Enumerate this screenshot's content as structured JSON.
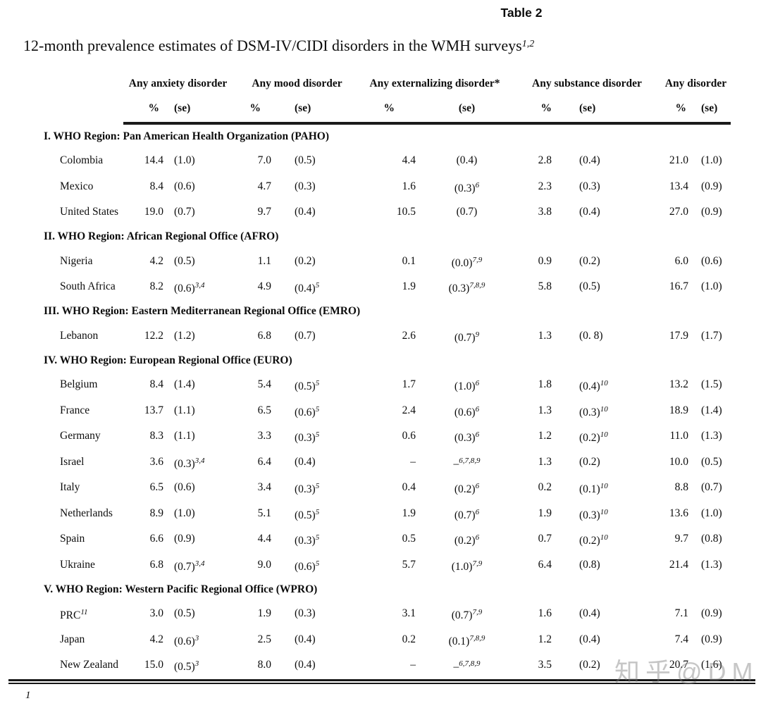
{
  "page": {
    "table_label": "Table 2",
    "caption": "12-month prevalence estimates of DSM-IV/CIDI disorders in the WMH surveys",
    "caption_sup": "1,2",
    "footnote_marker": "1",
    "watermark": "知乎@DM",
    "text_color": "#0d0d0d",
    "background_color": "#ffffff"
  },
  "table": {
    "column_groups": [
      {
        "label": "Any anxiety disorder"
      },
      {
        "label": "Any mood disorder"
      },
      {
        "label": "Any externalizing disorder*"
      },
      {
        "label": "Any substance disorder"
      },
      {
        "label": "Any disorder"
      }
    ],
    "subheaders": {
      "pct": "%",
      "se": "(se)"
    },
    "sections": [
      {
        "header": "I. WHO Region: Pan American Health Organization (PAHO)",
        "rows": [
          {
            "country": "Colombia",
            "cells": [
              "14.4",
              "(1.0)",
              "7.0",
              "(0.5)",
              "4.4",
              "(0.4)",
              "2.8",
              "(0.4)",
              "21.0",
              "(1.0)"
            ]
          },
          {
            "country": "Mexico",
            "cells": [
              "8.4",
              "(0.6)",
              "4.7",
              "(0.3)",
              "1.6",
              "(0.3)^6",
              "2.3",
              "(0.3)",
              "13.4",
              "(0.9)"
            ]
          },
          {
            "country": "United States",
            "cells": [
              "19.0",
              "(0.7)",
              "9.7",
              "(0.4)",
              "10.5",
              "(0.7)",
              "3.8",
              "(0.4)",
              "27.0",
              "(0.9)"
            ]
          }
        ]
      },
      {
        "header": "II. WHO Region: African Regional Office (AFRO)",
        "rows": [
          {
            "country": "Nigeria",
            "cells": [
              "4.2",
              "(0.5)",
              "1.1",
              "(0.2)",
              "0.1",
              "(0.0)^7,9",
              "0.9",
              "(0.2)",
              "6.0",
              "(0.6)"
            ]
          },
          {
            "country": "South Africa",
            "cells": [
              "8.2",
              "(0.6)^3,4",
              "4.9",
              "(0.4)^5",
              "1.9",
              "(0.3)^7,8,9",
              "5.8",
              "(0.5)",
              "16.7",
              "(1.0)"
            ]
          }
        ]
      },
      {
        "header": "III. WHO Region: Eastern Mediterranean Regional Office (EMRO)",
        "rows": [
          {
            "country": "Lebanon",
            "cells": [
              "12.2",
              "(1.2)",
              "6.8",
              "(0.7)",
              "2.6",
              "(0.7)^9",
              "1.3",
              "(0. 8)",
              "17.9",
              "(1.7)"
            ]
          }
        ]
      },
      {
        "header": "IV. WHO Region: European Regional Office (EURO)",
        "rows": [
          {
            "country": "Belgium",
            "cells": [
              "8.4",
              "(1.4)",
              "5.4",
              "(0.5)^5",
              "1.7",
              "(1.0)^6",
              "1.8",
              "(0.4)^10",
              "13.2",
              "(1.5)"
            ]
          },
          {
            "country": "France",
            "cells": [
              "13.7",
              "(1.1)",
              "6.5",
              "(0.6)^5",
              "2.4",
              "(0.6)^6",
              "1.3",
              "(0.3)^10",
              "18.9",
              "(1.4)"
            ]
          },
          {
            "country": "Germany",
            "cells": [
              "8.3",
              "(1.1)",
              "3.3",
              "(0.3)^5",
              "0.6",
              "(0.3)^6",
              "1.2",
              "(0.2)^10",
              "11.0",
              "(1.3)"
            ]
          },
          {
            "country": "Israel",
            "cells": [
              "3.6",
              "(0.3)^3,4",
              "6.4",
              "(0.4)",
              "–",
              "–^6,7,8,9",
              "1.3",
              "(0.2)",
              "10.0",
              "(0.5)"
            ]
          },
          {
            "country": "Italy",
            "cells": [
              "6.5",
              "(0.6)",
              "3.4",
              "(0.3)^5",
              "0.4",
              "(0.2)^6",
              "0.2",
              "(0.1)^10",
              "8.8",
              "(0.7)"
            ]
          },
          {
            "country": "Netherlands",
            "cells": [
              "8.9",
              "(1.0)",
              "5.1",
              "(0.5)^5",
              "1.9",
              "(0.7)^6",
              "1.9",
              "(0.3)^10",
              "13.6",
              "(1.0)"
            ]
          },
          {
            "country": "Spain",
            "cells": [
              "6.6",
              "(0.9)",
              "4.4",
              "(0.3)^5",
              "0.5",
              "(0.2)^6",
              "0.7",
              "(0.2)^10",
              "9.7",
              "(0.8)"
            ]
          },
          {
            "country": "Ukraine",
            "cells": [
              "6.8",
              "(0.7)^3,4",
              "9.0",
              "(0.6)^5",
              "5.7",
              "(1.0)^7,9",
              "6.4",
              "(0.8)",
              "21.4",
              "(1.3)"
            ]
          }
        ]
      },
      {
        "header": "V. WHO Region: Western Pacific Regional Office (WPRO)",
        "rows": [
          {
            "country": "PRC^11",
            "cells": [
              "3.0",
              "(0.5)",
              "1.9",
              "(0.3)",
              "3.1",
              "(0.7)^7,9",
              "1.6",
              "(0.4)",
              "7.1",
              "(0.9)"
            ]
          },
          {
            "country": "Japan",
            "cells": [
              "4.2",
              "(0.6)^3",
              "2.5",
              "(0.4)",
              "0.2",
              "(0.1)^7,8,9",
              "1.2",
              "(0.4)",
              "7.4",
              "(0.9)"
            ]
          },
          {
            "country": "New Zealand",
            "cells": [
              "15.0",
              "(0.5)^3",
              "8.0",
              "(0.4)",
              "–",
              "–^6,7,8,9",
              "3.5",
              "(0.2)",
              "20.7",
              "(1.6)"
            ]
          }
        ]
      }
    ]
  }
}
